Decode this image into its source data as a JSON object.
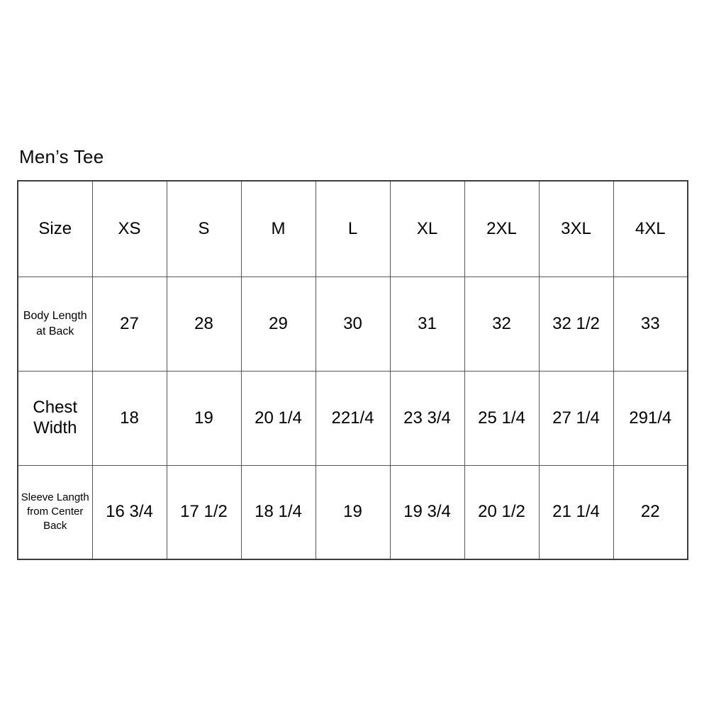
{
  "colors": {
    "background": "#ffffff",
    "text": "#000000",
    "grid_line": "#58585a",
    "outer_border": "#3d3d3d"
  },
  "chart_data": {
    "type": "table",
    "title": "Men’s Tee",
    "columns": [
      "Size",
      "XS",
      "S",
      "M",
      "L",
      "XL",
      "2XL",
      "3XL",
      "4XL"
    ],
    "rows": [
      [
        "Body Length at Back",
        "27",
        "28",
        "29",
        "30",
        "31",
        "32",
        "32 1/2",
        "33"
      ],
      [
        "Chest Width",
        "18",
        "19",
        "20 1/4",
        "221/4",
        "23 3/4",
        "25 1/4",
        "27 1/4",
        "291/4"
      ],
      [
        "Sleeve Langth from Center Back",
        "16 3/4",
        "17 1/2",
        "18 1/4",
        "19",
        "19 3/4",
        "20 1/2",
        "21 1/4",
        "22"
      ]
    ],
    "layout": {
      "grid": true,
      "header_row": true,
      "label_column": true
    }
  }
}
